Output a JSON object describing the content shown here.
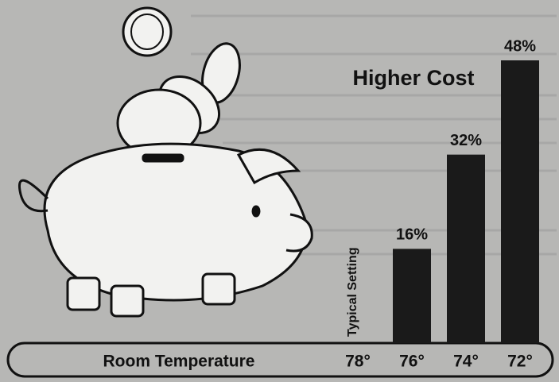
{
  "chart_data": {
    "type": "bar",
    "title": "Higher Cost",
    "x_label": "Room Temperature",
    "annotation": "Typical Setting",
    "categories": [
      "78°",
      "76°",
      "74°",
      "72°"
    ],
    "values": [
      null,
      16,
      32,
      48
    ],
    "value_labels": [
      null,
      "16%",
      "32%",
      "48%"
    ],
    "color": "#1a1a1a"
  }
}
